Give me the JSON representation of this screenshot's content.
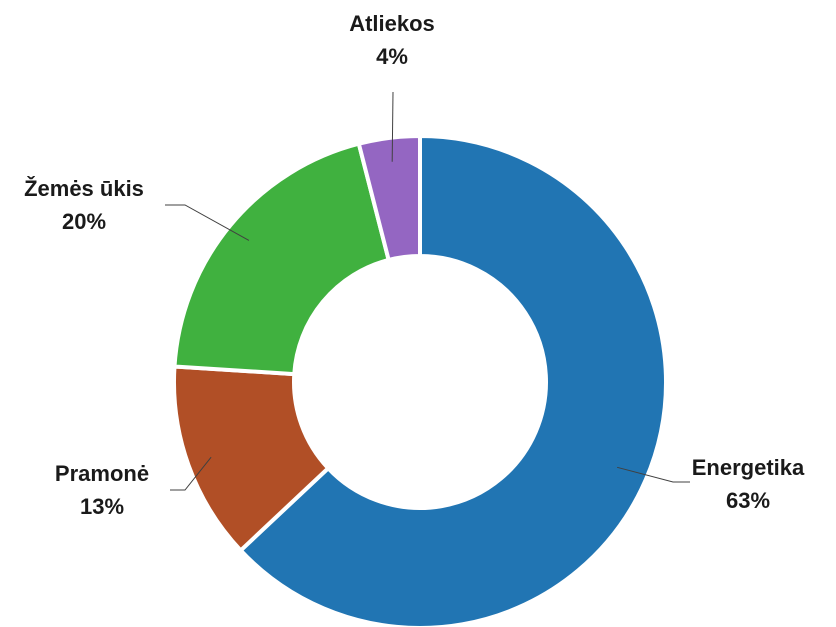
{
  "chart_data": {
    "type": "pie",
    "variant": "donut",
    "categories": [
      "Energetika",
      "Pramonė",
      "Žemės ūkis",
      "Atliekos"
    ],
    "values": [
      63,
      13,
      20,
      4
    ],
    "value_labels": [
      "63%",
      "13%",
      "20%",
      "4%"
    ],
    "colors": [
      "#2175b3",
      "#b14f26",
      "#40b13f",
      "#9466c2"
    ],
    "start_angle_deg": 0,
    "direction": "clockwise",
    "legend": "none",
    "data_labels": "outside with leader lines"
  }
}
